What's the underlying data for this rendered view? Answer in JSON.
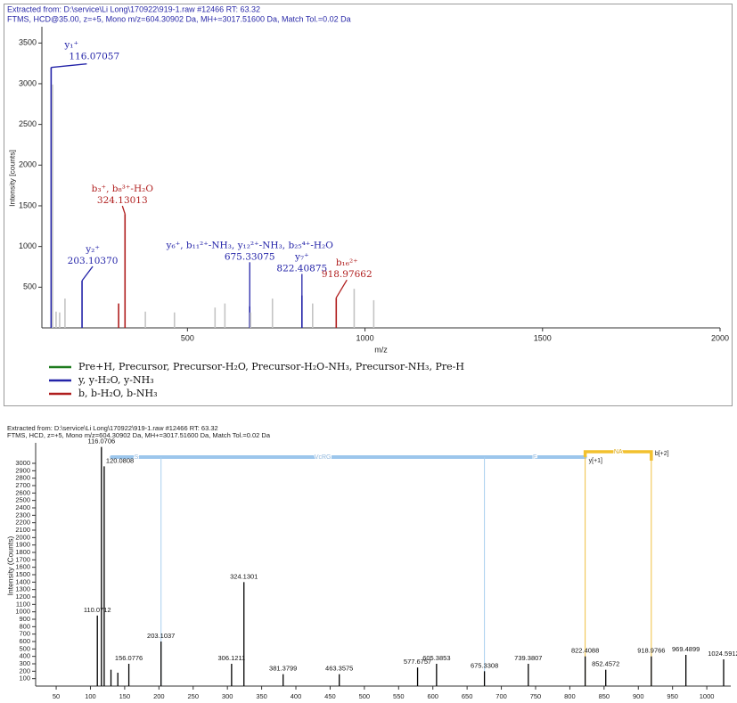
{
  "chart_data": [
    {
      "type": "bar",
      "header": [
        "Extracted from: D:\\service\\Li Long\\170922\\919-1.raw  #12466  RT: 63.32",
        "FTMS, HCD@35.00, z=+5, Mono m/z=604.30902 Da, MH+=3017.51600 Da, Match Tol.=0.02 Da"
      ],
      "x_label": "m/z",
      "y_label": "Intensity [counts]",
      "xlim": [
        90,
        2000
      ],
      "xticks": [
        500,
        1000,
        1500,
        2000
      ],
      "ylim": [
        0,
        3700
      ],
      "yticks": [
        500,
        1000,
        1500,
        2000,
        2500,
        3000,
        3500
      ],
      "series": [
        {
          "name": "Pre+H, Precursor, Precursor-H₂O, Precursor-H₂O-NH₃, Precursor-NH₃, Pre-H",
          "color": "#1e7b1e",
          "x": [],
          "values": []
        },
        {
          "name": "y, y-H₂O, y-NH₃",
          "color": "#2323a8",
          "x": [
            116.07057,
            203.1037,
            675.33075,
            822.40875
          ],
          "values": [
            3200,
            580,
            270,
            400
          ],
          "ions": [
            "y₁⁺",
            "y₂⁺",
            "y₆⁺, b₁₁²⁺-NH₃, y₁₂²⁺-NH₃, b₂₅⁴⁺-H₂O",
            "y₇⁺"
          ],
          "labels": [
            "116.07057",
            "203.10370",
            "675.33075",
            "822.40875"
          ]
        },
        {
          "name": "b, b-H₂O, b-NH₃",
          "color": "#b01e1e",
          "x": [
            306.12,
            324.13013,
            918.97662
          ],
          "values": [
            300,
            1400,
            370
          ],
          "ions": [
            null,
            "b₃⁺, b₈³⁺-H₂O",
            "b₁₆²⁺"
          ],
          "labels": [
            null,
            "324.13013",
            "918.97662"
          ]
        },
        {
          "color": "#c4c4c4",
          "x": [
            120.08,
            130,
            140,
            155,
            381.38,
            463.36,
            577.68,
            605.39,
            677.68,
            739.38,
            852.46,
            969.49,
            1024.59
          ],
          "values": [
            2990,
            200,
            190,
            360,
            200,
            190,
            250,
            300,
            190,
            360,
            300,
            480,
            340
          ]
        }
      ]
    },
    {
      "type": "bar",
      "header": [
        "Extracted from: D:\\service\\Li Long\\170922\\919-1.raw  #12466  RT: 63.32",
        "FTMS, HCD, z=+5, Mono m/z=604.30902 Da, MH+=3017.51600 Da, Match Tol.=0.02 Da"
      ],
      "y_label": "Intensity (Counts)",
      "xlim": [
        20,
        1035
      ],
      "xticks": [
        50,
        100,
        150,
        200,
        250,
        300,
        350,
        400,
        450,
        500,
        550,
        600,
        650,
        700,
        750,
        800,
        850,
        900,
        950,
        1000
      ],
      "ylim": [
        0,
        3276
      ],
      "yticks": [
        100,
        200,
        300,
        400,
        500,
        600,
        700,
        800,
        900,
        1000,
        1100,
        1200,
        1300,
        1400,
        1500,
        1600,
        1700,
        1800,
        1900,
        2000,
        2100,
        2200,
        2300,
        2400,
        2500,
        2600,
        2700,
        2800,
        2900,
        3000
      ],
      "series": [
        {
          "color": "#000000",
          "x": [
            110.0712,
            116.0706,
            120.0808,
            130,
            140,
            156.0776,
            203.1037,
            306.1211,
            324.1301,
            381.3799,
            463.3575,
            577.6757,
            605.3853,
            675.3308,
            739.3807,
            822.4088,
            852.4572,
            918.9766,
            969.4899,
            1024.5912
          ],
          "values": [
            950,
            3220,
            2960,
            220,
            180,
            300,
            600,
            300,
            1400,
            160,
            160,
            250,
            300,
            200,
            300,
            400,
            220,
            400,
            420,
            360
          ],
          "labels": [
            "110.0712",
            "116.0706",
            "120.0808",
            null,
            null,
            "156.0776",
            "203.1037",
            "306.1211",
            "324.1301",
            "381.3799",
            "463.3575",
            "577.6757",
            "605.3853",
            "675.3308",
            "739.3807",
            "822.4088",
            "852.4572",
            "918.9766",
            "969.4899",
            "1024.5912"
          ]
        }
      ],
      "sequence": {
        "labels": [
          "S",
          "VcRG",
          "F",
          "NA"
        ],
        "edges": [
          131,
          203.1037,
          675.3308,
          822.4088,
          918.9766
        ],
        "ion_labels": [
          "y[+1]",
          "b[+2]"
        ]
      }
    }
  ]
}
